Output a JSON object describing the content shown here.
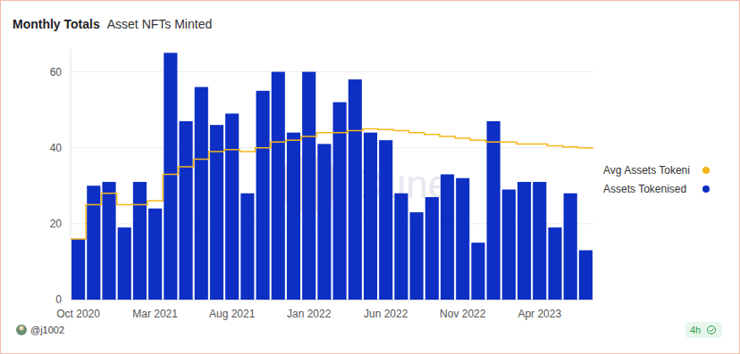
{
  "chart_data": {
    "type": "bar",
    "title": "Monthly Totals",
    "subtitle": "Asset NFTs Minted",
    "categories": [
      "Oct 2020",
      null,
      null,
      null,
      null,
      "Mar 2021",
      null,
      null,
      null,
      null,
      "Aug 2021",
      null,
      null,
      null,
      null,
      "Jan 2022",
      null,
      null,
      null,
      null,
      "Jun 2022",
      null,
      null,
      null,
      null,
      "Nov 2022",
      null,
      null,
      null,
      null,
      "Apr 2023",
      null,
      null,
      null
    ],
    "series": [
      {
        "name": "Avg Assets Tokeni",
        "type": "line",
        "line_style": "step",
        "color": "#f5b71c",
        "values": [
          16,
          25,
          28,
          25,
          25,
          26,
          33,
          35,
          37,
          39,
          39.5,
          39,
          40,
          41.5,
          42,
          43,
          44,
          44,
          44.5,
          45,
          44.8,
          44.5,
          44,
          43.5,
          43,
          42.5,
          42,
          41.5,
          41.5,
          41,
          41,
          40.5,
          40.2,
          40
        ]
      },
      {
        "name": "Assets Tokenised",
        "type": "bar",
        "color": "#0d2fc4",
        "values": [
          16,
          30,
          31,
          19,
          31,
          24,
          65,
          47,
          56,
          46,
          49,
          28,
          55,
          60,
          44,
          60,
          41,
          52,
          58,
          44,
          42,
          28,
          23,
          27,
          33,
          32,
          15,
          47,
          29,
          31,
          31,
          19,
          28,
          13
        ]
      }
    ],
    "ylim": [
      0,
      66
    ],
    "yticks": [
      0,
      20,
      40,
      60
    ],
    "grid": true,
    "legend": "right",
    "watermark": "Dune",
    "footer": {
      "author": "@j1002",
      "updated": "4h"
    }
  }
}
